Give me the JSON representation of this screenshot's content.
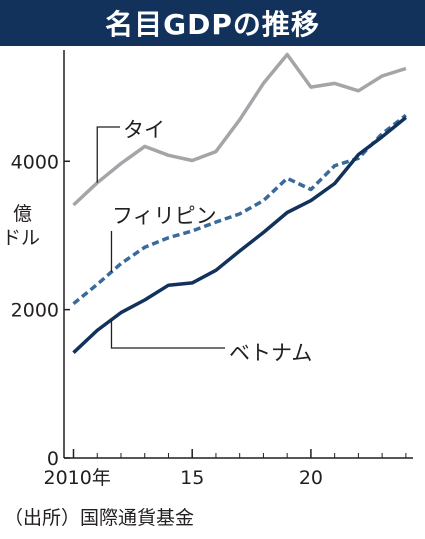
{
  "chart_data": {
    "type": "line",
    "title": "名目GDPの推移",
    "ylabel": "億ドル",
    "ylim": [
      0,
      5500
    ],
    "y_ticks": [
      {
        "value": 0,
        "label": "0"
      },
      {
        "value": 2000,
        "label": "2000"
      },
      {
        "value": 4000,
        "label": "4000"
      }
    ],
    "xlim": [
      2009.6,
      2024.3
    ],
    "x_ticks": [
      {
        "value": 2010,
        "label": "2010年"
      },
      {
        "value": 2015,
        "label": "15"
      },
      {
        "value": 2020,
        "label": "20"
      }
    ],
    "x": [
      2010,
      2011,
      2012,
      2013,
      2014,
      2015,
      2016,
      2017,
      2018,
      2019,
      2020,
      2021,
      2022,
      2023,
      2024
    ],
    "series": [
      {
        "name": "タイ",
        "color": "#a3a5a8",
        "style": "solid",
        "values": [
          3410,
          3710,
          3970,
          4200,
          4080,
          4010,
          4130,
          4560,
          5050,
          5440,
          5000,
          5050,
          4950,
          5150,
          5250
        ]
      },
      {
        "name": "フィリピン",
        "color": "#3a6a9c",
        "style": "dashed",
        "values": [
          2080,
          2340,
          2620,
          2840,
          2970,
          3060,
          3180,
          3290,
          3470,
          3770,
          3620,
          3940,
          4040,
          4370,
          4620
        ]
      },
      {
        "name": "ベトナム",
        "color": "#12325c",
        "style": "solid",
        "values": [
          1420,
          1720,
          1960,
          2130,
          2330,
          2360,
          2530,
          2790,
          3040,
          3310,
          3470,
          3700,
          4090,
          4330,
          4590
        ]
      }
    ]
  },
  "source": "（出所）国際通貨基金"
}
